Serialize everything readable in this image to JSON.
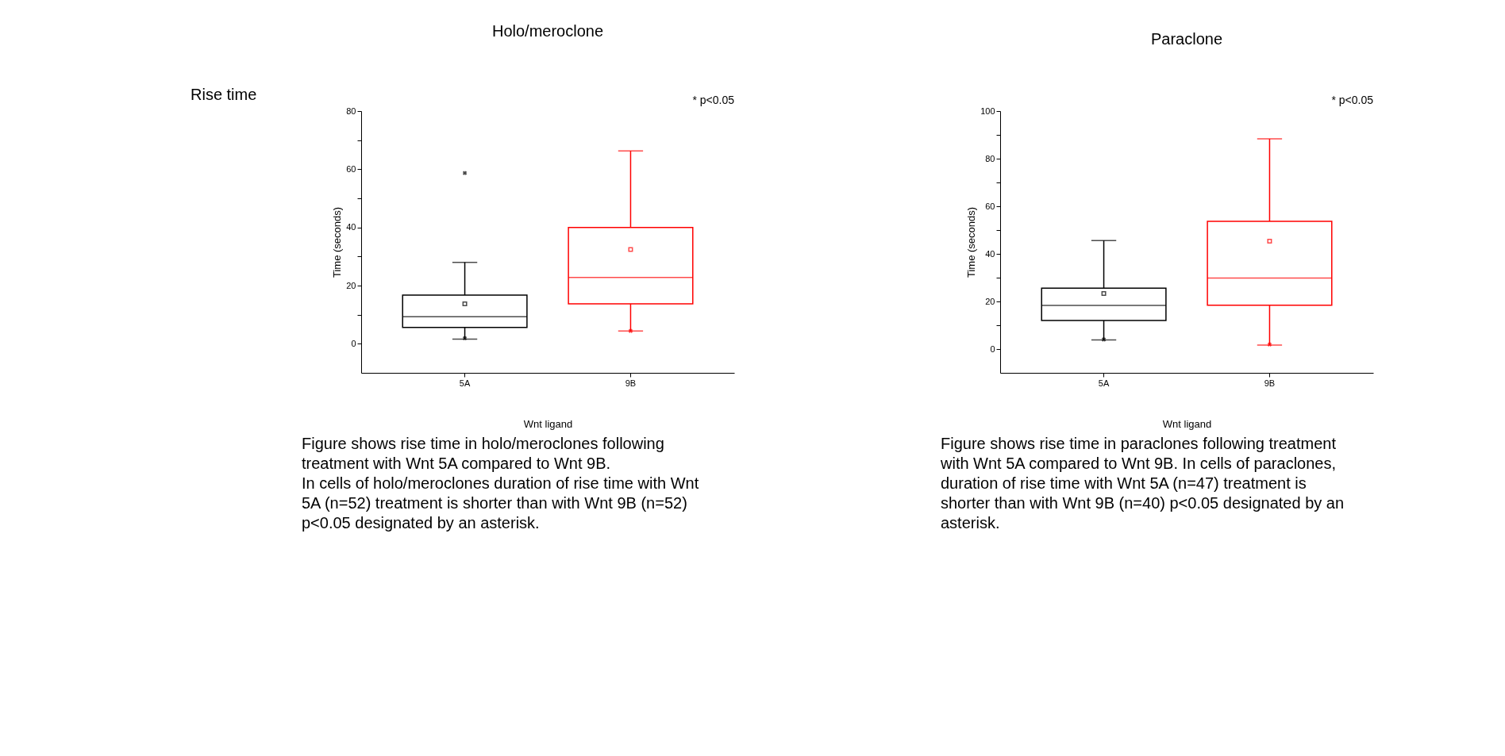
{
  "chart_data": [
    {
      "type": "box",
      "title": "Holo/meroclone",
      "subtitle": "Rise time",
      "xlabel": "Wnt ligand",
      "ylabel": "Time (seconds)",
      "categories": [
        "5A",
        "9B"
      ],
      "colors": [
        "#000000",
        "#ff0000"
      ],
      "marker": "square",
      "boxes": [
        {
          "low": 1.6,
          "q1": 5.6,
          "median": 9.3,
          "q3": 16.7,
          "high": 28,
          "mean": 13.7,
          "outliers": [
            58.7,
            1.9
          ]
        },
        {
          "low": 4.4,
          "q1": 13.7,
          "median": 22.8,
          "q3": 40,
          "high": 66.3,
          "mean": 32.4,
          "outliers": [
            4.4
          ]
        }
      ],
      "ylim": [
        -10,
        80
      ],
      "yticks": [
        0,
        {
          "value": 10,
          "label": null
        },
        20,
        {
          "value": 30,
          "label": null
        },
        40,
        {
          "value": 50,
          "label": null
        },
        60,
        {
          "value": 70,
          "label": null
        },
        80
      ],
      "grid": false,
      "annotations": [
        "* p<0.05",
        "Figure shows rise time in holo/meroclones following treatment with Wnt 5A compared to Wnt 9B.",
        "In cells of holo/meroclones duration of rise time with Wnt 5A (n=52) treatment is shorter than with Wnt 9B (n=52) p<0.05 designated by an asterisk."
      ]
    },
    {
      "type": "box",
      "title": "Paraclone",
      "xlabel": "Wnt ligand",
      "ylabel": "Time (seconds)",
      "categories": [
        "5A",
        "9B"
      ],
      "colors": [
        "#000000",
        "#ff0000"
      ],
      "marker": "square",
      "boxes": [
        {
          "low": 3.8,
          "q1": 12,
          "median": 18.3,
          "q3": 25.6,
          "high": 45.6,
          "mean": 23.3,
          "outliers": [
            4
          ]
        },
        {
          "low": 1.7,
          "q1": 18.4,
          "median": 29.8,
          "q3": 53.7,
          "high": 88.3,
          "mean": 45.3,
          "outliers": [
            1.9
          ]
        }
      ],
      "ylim": [
        -10,
        100
      ],
      "yticks": [
        0,
        {
          "value": 10,
          "label": null
        },
        20,
        {
          "value": 30,
          "label": null
        },
        40,
        {
          "value": 50,
          "label": null
        },
        60,
        {
          "value": 70,
          "label": null
        },
        80,
        {
          "value": 90,
          "label": null
        },
        100
      ],
      "grid": false,
      "annotations": [
        "* p<0.05",
        "Figure shows rise time in paraclones following treatment with Wnt 5A compared to Wnt 9B. In cells of paraclones, duration of rise time with Wnt 5A (n=47) treatment is shorter than with Wnt 9B (n=40) p<0.05 designated by an asterisk."
      ]
    }
  ]
}
